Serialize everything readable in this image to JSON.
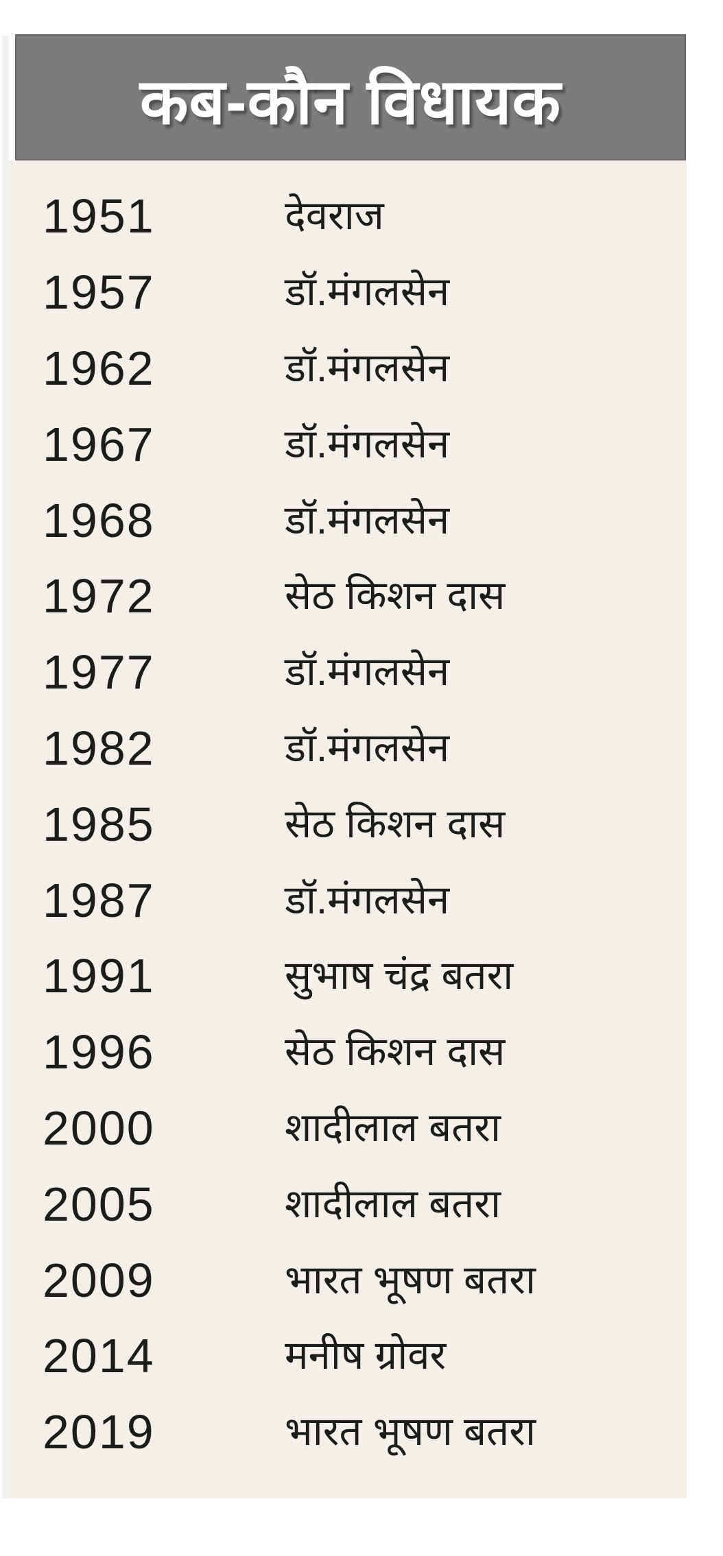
{
  "header": {
    "title": "कब-कौन विधायक"
  },
  "table": {
    "rows": [
      {
        "year": "1951",
        "name": "देवराज"
      },
      {
        "year": "1957",
        "name": "डॉ.मंगलसेन"
      },
      {
        "year": "1962",
        "name": "डॉ.मंगलसेन"
      },
      {
        "year": "1967",
        "name": "डॉ.मंगलसेन"
      },
      {
        "year": "1968",
        "name": "डॉ.मंगलसेन"
      },
      {
        "year": "1972",
        "name": "सेठ किशन दास"
      },
      {
        "year": "1977",
        "name": "डॉ.मंगलसेन"
      },
      {
        "year": "1982",
        "name": "डॉ.मंगलसेन"
      },
      {
        "year": "1985",
        "name": "सेठ किशन दास"
      },
      {
        "year": "1987",
        "name": "डॉ.मंगलसेन"
      },
      {
        "year": "1991",
        "name": "सुभाष चंद्र बतरा"
      },
      {
        "year": "1996",
        "name": "सेठ किशन दास"
      },
      {
        "year": "2000",
        "name": "शादीलाल बतरा"
      },
      {
        "year": "2005",
        "name": "शादीलाल बतरा"
      },
      {
        "year": "2009",
        "name": "भारत भूषण बतरा"
      },
      {
        "year": "2014",
        "name": "मनीष ग्रोवर"
      },
      {
        "year": "2019",
        "name": "भारत भूषण बतरा"
      }
    ]
  },
  "colors": {
    "header_bg": "#7c7c7c",
    "header_text": "#ffffff",
    "panel_bg": "#f3f0e9",
    "row_text": "#1c1c1a"
  }
}
